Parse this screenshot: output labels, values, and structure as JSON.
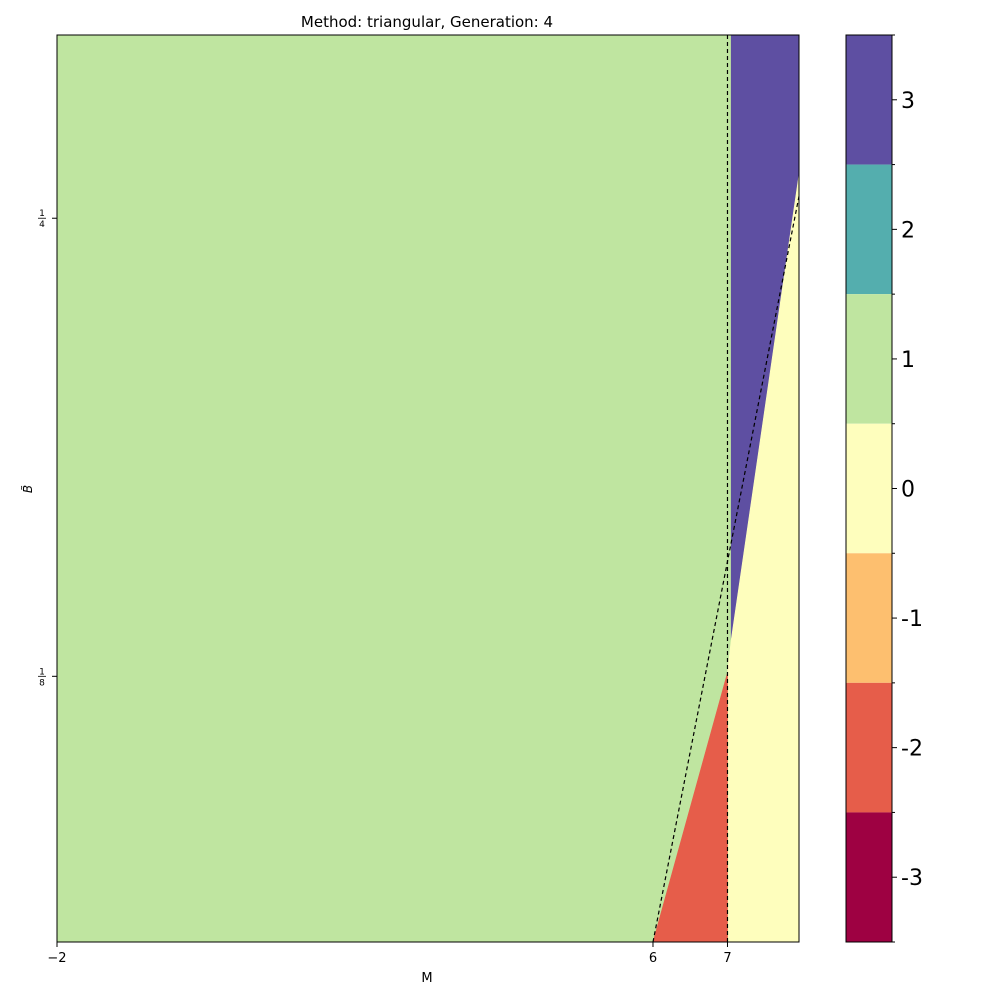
{
  "chart_data": {
    "type": "heatmap",
    "title": "Method: triangular, Generation: 4",
    "xlabel": "M",
    "ylabel": "B̃",
    "xlim": [
      -2,
      7.96
    ],
    "ylim": [
      0.0525,
      0.3
    ],
    "x_ticks": [
      {
        "value": -2,
        "label": "−2"
      },
      {
        "value": 6,
        "label": "6"
      },
      {
        "value": 7,
        "label": "7"
      }
    ],
    "y_ticks": [
      {
        "value": 0.125,
        "num": "1",
        "den": "8"
      },
      {
        "value": 0.25,
        "num": "1",
        "den": "4"
      }
    ],
    "legend": "colorbar-right",
    "colorbar": {
      "min": -3.5,
      "max": 3.5,
      "levels": [
        {
          "value": 3,
          "label": "3",
          "color": "#5e4fa2"
        },
        {
          "value": 2,
          "label": "2",
          "color": "#54aeae"
        },
        {
          "value": 1,
          "label": "1",
          "color": "#bfe5a0"
        },
        {
          "value": 0,
          "label": "0",
          "color": "#fefebd"
        },
        {
          "value": -1,
          "label": "-1",
          "color": "#fdbf6f"
        },
        {
          "value": -2,
          "label": "-2",
          "color": "#e65d4a"
        },
        {
          "value": -3,
          "label": "-3",
          "color": "#9e0142"
        }
      ]
    },
    "regions": [
      {
        "value": 1,
        "label": "1",
        "polygon": [
          [
            -2,
            0.0525
          ],
          [
            6,
            0.0525
          ],
          [
            7,
            0.126
          ],
          [
            7.05,
            0.135
          ],
          [
            7.05,
            0.3
          ],
          [
            -2,
            0.3
          ]
        ]
      },
      {
        "value": 3,
        "label": "3",
        "polygon": [
          [
            7.05,
            0.3
          ],
          [
            7.96,
            0.3
          ],
          [
            7.96,
            0.262
          ],
          [
            7.05,
            0.135
          ]
        ]
      },
      {
        "value": 0,
        "label": "0",
        "polygon": [
          [
            7.05,
            0.135
          ],
          [
            7.96,
            0.262
          ],
          [
            7.96,
            0.0525
          ],
          [
            7,
            0.0525
          ],
          [
            7,
            0.126
          ]
        ]
      },
      {
        "value": -2,
        "label": "-2",
        "polygon": [
          [
            6,
            0.0525
          ],
          [
            7,
            0.0525
          ],
          [
            7,
            0.126
          ]
        ]
      }
    ],
    "reference_lines": [
      {
        "style": "dashed",
        "points": [
          [
            7,
            0.0525
          ],
          [
            7,
            0.3
          ]
        ]
      },
      {
        "style": "dashed",
        "points": [
          [
            6,
            0.0525
          ],
          [
            7.96,
            0.256
          ]
        ]
      }
    ]
  }
}
